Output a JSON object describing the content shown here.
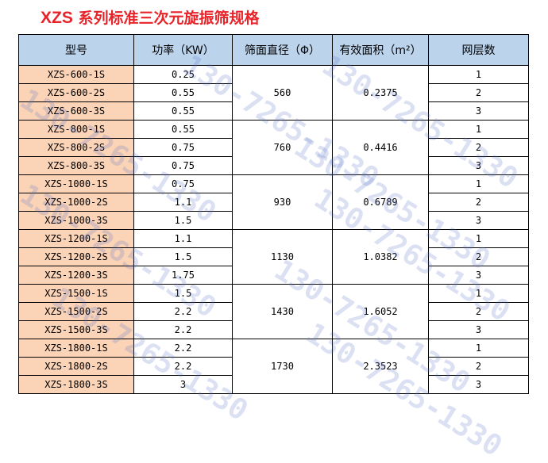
{
  "page_title": {
    "code": "XZS",
    "text": " 系列标准三次元旋振筛规格"
  },
  "table": {
    "headers": {
      "model": "型号",
      "power": "功率（KW）",
      "diameter": "筛面直径（Φ）",
      "area": "有效面积（m²）",
      "layers": "网层数"
    },
    "groups": [
      {
        "diameter": "560",
        "area": "0.2375",
        "rows": [
          {
            "model": "XZS-600-1S",
            "power": "0.25",
            "layers": "1"
          },
          {
            "model": "XZS-600-2S",
            "power": "0.55",
            "layers": "2"
          },
          {
            "model": "XZS-600-3S",
            "power": "0.55",
            "layers": "3"
          }
        ]
      },
      {
        "diameter": "760",
        "area": "0.4416",
        "rows": [
          {
            "model": "XZS-800-1S",
            "power": "0.55",
            "layers": "1"
          },
          {
            "model": "XZS-800-2S",
            "power": "0.75",
            "layers": "2"
          },
          {
            "model": "XZS-800-3S",
            "power": "0.75",
            "layers": "3"
          }
        ]
      },
      {
        "diameter": "930",
        "area": "0.6789",
        "rows": [
          {
            "model": "XZS-1000-1S",
            "power": "0.75",
            "layers": "1"
          },
          {
            "model": "XZS-1000-2S",
            "power": "1.1",
            "layers": "2"
          },
          {
            "model": "XZS-1000-3S",
            "power": "1.5",
            "layers": "3"
          }
        ]
      },
      {
        "diameter": "1130",
        "area": "1.0382",
        "rows": [
          {
            "model": "XZS-1200-1S",
            "power": "1.1",
            "layers": "1"
          },
          {
            "model": "XZS-1200-2S",
            "power": "1.5",
            "layers": "2"
          },
          {
            "model": "XZS-1200-3S",
            "power": "1.75",
            "layers": "3"
          }
        ]
      },
      {
        "diameter": "1430",
        "area": "1.6052",
        "rows": [
          {
            "model": "XZS-1500-1S",
            "power": "1.5",
            "layers": "1"
          },
          {
            "model": "XZS-1500-2S",
            "power": "2.2",
            "layers": "2"
          },
          {
            "model": "XZS-1500-3S",
            "power": "2.2",
            "layers": "3"
          }
        ]
      },
      {
        "diameter": "1730",
        "area": "2.3523",
        "rows": [
          {
            "model": "XZS-1800-1S",
            "power": "2.2",
            "layers": "1"
          },
          {
            "model": "XZS-1800-2S",
            "power": "2.2",
            "layers": "2"
          },
          {
            "model": "XZS-1800-3S",
            "power": "3",
            "layers": "3"
          }
        ]
      }
    ]
  },
  "watermark": {
    "text": "130-7265-1330"
  },
  "colors": {
    "title": "#e8242a",
    "header_bg": "#bcd3ec",
    "model_bg": "#fbd3b6",
    "watermark": "#5a78c8"
  }
}
